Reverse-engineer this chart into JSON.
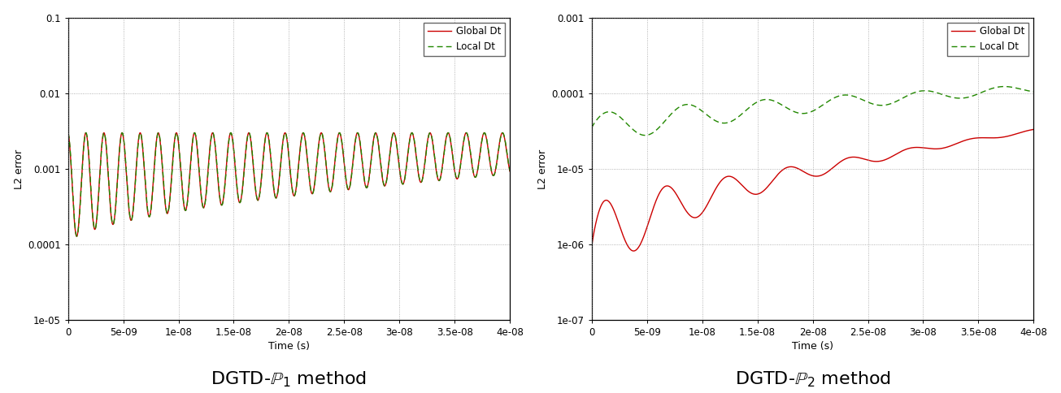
{
  "plot1": {
    "title": "DGTD-$\\mathbb{P}_1$ method",
    "ylabel": "L2 error",
    "xlabel": "Time (s)",
    "xlim": [
      0,
      4e-08
    ],
    "ylim": [
      1e-05,
      0.1
    ],
    "yticks": [
      1e-05,
      0.0001,
      0.001,
      0.01,
      0.1
    ],
    "ytick_labels": [
      "1e-05",
      "0.0001",
      "0.001",
      "0.01",
      "0.1"
    ],
    "xticks": [
      0,
      5e-09,
      1e-08,
      1.5e-08,
      2e-08,
      2.5e-08,
      3e-08,
      3.5e-08,
      4e-08
    ],
    "xtick_labels": [
      "0",
      "5e-09",
      "1e-08",
      "1.5e-08",
      "2e-08",
      "2.5e-08",
      "3e-08",
      "3.5e-08",
      "4e-08"
    ],
    "global_color": "#cc0000",
    "local_color": "#228800",
    "global_lw": 1.0,
    "local_lw": 1.0,
    "freq": 600000000.0,
    "n_cycles": 26
  },
  "plot2": {
    "title": "DGTD-$\\mathbb{P}_2$ method",
    "ylabel": "L2 error",
    "xlabel": "Time (s)",
    "xlim": [
      0,
      4e-08
    ],
    "ylim": [
      1e-07,
      0.001
    ],
    "yticks": [
      1e-07,
      1e-06,
      1e-05,
      0.0001,
      0.001
    ],
    "ytick_labels": [
      "1e-07",
      "1e-06",
      "1e-05",
      "0.0001",
      "0.001"
    ],
    "xticks": [
      0,
      5e-09,
      1e-08,
      1.5e-08,
      2e-08,
      2.5e-08,
      3e-08,
      3.5e-08,
      4e-08
    ],
    "xtick_labels": [
      "0",
      "5e-09",
      "1e-08",
      "1.5e-08",
      "2e-08",
      "2.5e-08",
      "3e-08",
      "3.5e-08",
      "4e-08"
    ],
    "global_color": "#cc0000",
    "local_color": "#228800",
    "global_lw": 1.0,
    "local_lw": 1.0
  },
  "legend_labels": [
    "Global Dt",
    "Local Dt"
  ],
  "background_color": "#ffffff",
  "plot_bg_color": "#ffffff",
  "grid_color": "#888888",
  "grid_style": ":",
  "title_fontsize": 16,
  "axis_fontsize": 9,
  "tick_fontsize": 8.5,
  "legend_fontsize": 8.5
}
